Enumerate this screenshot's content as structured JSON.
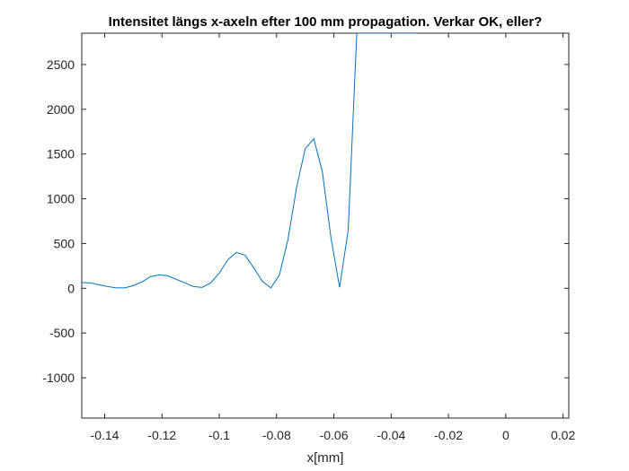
{
  "chart_data": {
    "type": "line",
    "title": "Intensitet längs x-axeln efter 100 mm propagation. Verkar OK, eller?",
    "xlabel": "x[mm]",
    "ylabel": "",
    "xlim": [
      -0.148,
      0.022
    ],
    "ylim": [
      -1450,
      2850
    ],
    "x_ticks": [
      -0.14,
      -0.12,
      -0.1,
      -0.08,
      -0.06,
      -0.04,
      -0.02,
      0,
      0.02
    ],
    "x_tick_labels": [
      "-0.14",
      "-0.12",
      "-0.1",
      "-0.08",
      "-0.06",
      "-0.04",
      "-0.02",
      "0",
      "0.02"
    ],
    "y_ticks": [
      -1000,
      -500,
      0,
      500,
      1000,
      1500,
      2000,
      2500
    ],
    "y_tick_labels": [
      "-1000",
      "-500",
      "0",
      "500",
      "1000",
      "1500",
      "2000",
      "2500"
    ],
    "grid": false,
    "box": true,
    "series": [
      {
        "color": "#0072BD",
        "x": [
          -0.148,
          -0.145,
          -0.142,
          -0.139,
          -0.136,
          -0.133,
          -0.13,
          -0.127,
          -0.124,
          -0.121,
          -0.118,
          -0.115,
          -0.112,
          -0.109,
          -0.106,
          -0.103,
          -0.1,
          -0.097,
          -0.094,
          -0.091,
          -0.088,
          -0.085,
          -0.082,
          -0.079,
          -0.076,
          -0.073,
          -0.07,
          -0.067,
          -0.064,
          -0.061,
          -0.058,
          -0.055,
          -0.052,
          -0.049,
          -0.046,
          -0.043,
          -0.04,
          -0.037,
          -0.034,
          -0.031
        ],
        "y": [
          65,
          60,
          40,
          20,
          5,
          5,
          30,
          70,
          130,
          150,
          140,
          100,
          60,
          20,
          10,
          60,
          170,
          320,
          400,
          370,
          230,
          80,
          5,
          150,
          550,
          1130,
          1560,
          1670,
          1300,
          560,
          10,
          650,
          2850,
          2850,
          2850,
          2850,
          2850,
          2850,
          2850,
          2850
        ]
      }
    ]
  }
}
